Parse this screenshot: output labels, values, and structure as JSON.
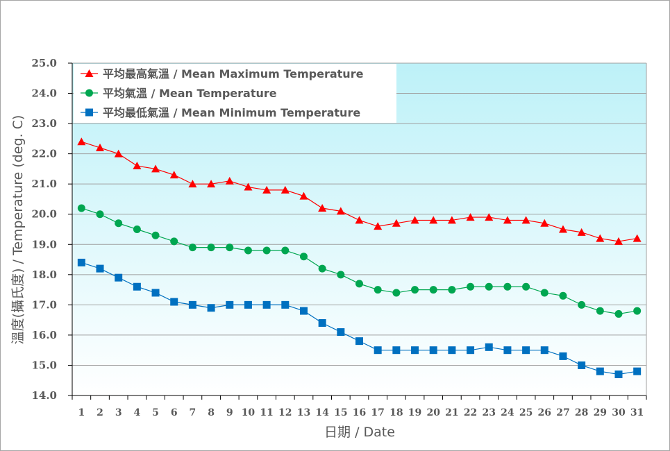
{
  "chart_data": {
    "type": "line",
    "categories": [
      "1",
      "2",
      "3",
      "4",
      "5",
      "6",
      "7",
      "8",
      "9",
      "10",
      "11",
      "12",
      "13",
      "14",
      "15",
      "16",
      "17",
      "18",
      "19",
      "20",
      "21",
      "22",
      "23",
      "24",
      "25",
      "26",
      "27",
      "28",
      "29",
      "30",
      "31"
    ],
    "xlabel": "日期 / Date",
    "ylabel": "溫度(攝氏度) / Temperature (deg. C)",
    "ylim": [
      14.0,
      25.0
    ],
    "yticks": [
      "14.0",
      "15.0",
      "16.0",
      "17.0",
      "18.0",
      "19.0",
      "20.0",
      "21.0",
      "22.0",
      "23.0",
      "24.0",
      "25.0"
    ],
    "grid": true,
    "legend_position": "top-left",
    "series": [
      {
        "name": "平均最高氣溫 / Mean Maximum Temperature",
        "color": "#ff0000",
        "marker": "triangle",
        "values": [
          22.4,
          22.2,
          22.0,
          21.6,
          21.5,
          21.3,
          21.0,
          21.0,
          21.1,
          20.9,
          20.8,
          20.8,
          20.6,
          20.2,
          20.1,
          19.8,
          19.6,
          19.7,
          19.8,
          19.8,
          19.8,
          19.9,
          19.9,
          19.8,
          19.8,
          19.7,
          19.5,
          19.4,
          19.2,
          19.1,
          19.2
        ]
      },
      {
        "name": "平均氣溫 / Mean Temperature",
        "color": "#00a650",
        "marker": "circle",
        "values": [
          20.2,
          20.0,
          19.7,
          19.5,
          19.3,
          19.1,
          18.9,
          18.9,
          18.9,
          18.8,
          18.8,
          18.8,
          18.6,
          18.2,
          18.0,
          17.7,
          17.5,
          17.4,
          17.5,
          17.5,
          17.5,
          17.6,
          17.6,
          17.6,
          17.6,
          17.4,
          17.3,
          17.0,
          16.8,
          16.7,
          16.8
        ]
      },
      {
        "name": "平均最低氣溫 / Mean Minimum Temperature",
        "color": "#0070c0",
        "marker": "square",
        "values": [
          18.4,
          18.2,
          17.9,
          17.6,
          17.4,
          17.1,
          17.0,
          16.9,
          17.0,
          17.0,
          17.0,
          17.0,
          16.8,
          16.4,
          16.1,
          15.8,
          15.5,
          15.5,
          15.5,
          15.5,
          15.5,
          15.5,
          15.6,
          15.5,
          15.5,
          15.5,
          15.3,
          15.0,
          14.8,
          14.7,
          14.8
        ]
      }
    ]
  }
}
